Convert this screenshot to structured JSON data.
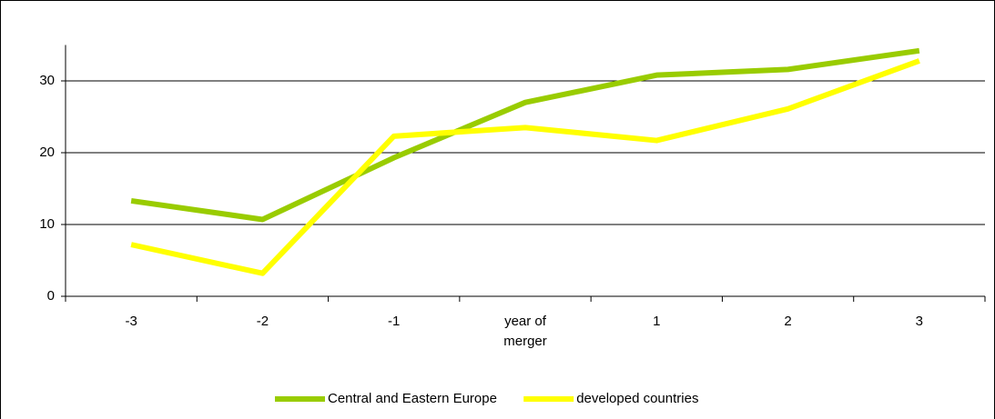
{
  "chart_data": {
    "type": "line",
    "categories": [
      "-3",
      "-2",
      "-1",
      "year of merger",
      "1",
      "2",
      "3"
    ],
    "series": [
      {
        "name": "Central and Eastern Europe",
        "color": "#99cc00",
        "values": [
          13.3,
          10.7,
          19.3,
          27.0,
          30.8,
          31.6,
          34.2
        ]
      },
      {
        "name": "developed countries",
        "color": "#ffff00",
        "values": [
          7.2,
          3.2,
          22.3,
          23.5,
          21.7,
          26.1,
          32.8
        ]
      }
    ],
    "ylim": [
      0,
      35
    ],
    "yticks": [
      0,
      10,
      20,
      30
    ],
    "grid": true,
    "legend": "bottom"
  }
}
